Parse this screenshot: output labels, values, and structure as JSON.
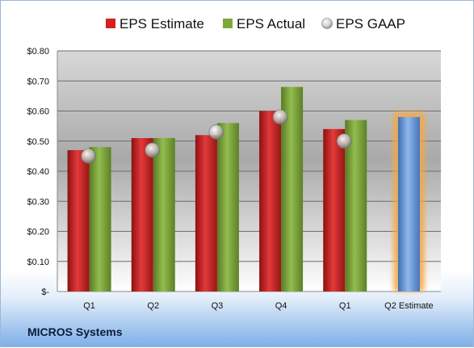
{
  "company": "MICROS Systems",
  "colors": {
    "estimate": "#d42222",
    "actual": "#7fa83a",
    "gaap": "#bfbfbf",
    "q2_estimate": "#5b8fd0",
    "q2_estimate_glow": "#f5a845"
  },
  "chart_data": {
    "type": "bar",
    "categories": [
      "Q1",
      "Q2",
      "Q3",
      "Q4",
      "Q1",
      "Q2 Estimate"
    ],
    "series": [
      {
        "name": "EPS Estimate",
        "values": [
          0.47,
          0.51,
          0.52,
          0.6,
          0.54,
          null
        ]
      },
      {
        "name": "EPS Actual",
        "values": [
          0.48,
          0.51,
          0.56,
          0.68,
          0.57,
          0.58
        ]
      },
      {
        "name": "EPS GAAP",
        "values": [
          0.45,
          0.47,
          0.53,
          0.58,
          0.5,
          null
        ]
      }
    ],
    "ylim": [
      0,
      0.8
    ],
    "yticks": [
      0,
      0.1,
      0.2,
      0.3,
      0.4,
      0.5,
      0.6,
      0.7,
      0.8
    ],
    "ytick_labels": [
      "$-",
      "$0.10",
      "$0.20",
      "$0.30",
      "$0.40",
      "$0.50",
      "$0.60",
      "$0.70",
      "$0.80"
    ],
    "grid": true,
    "legend_position": "top"
  }
}
